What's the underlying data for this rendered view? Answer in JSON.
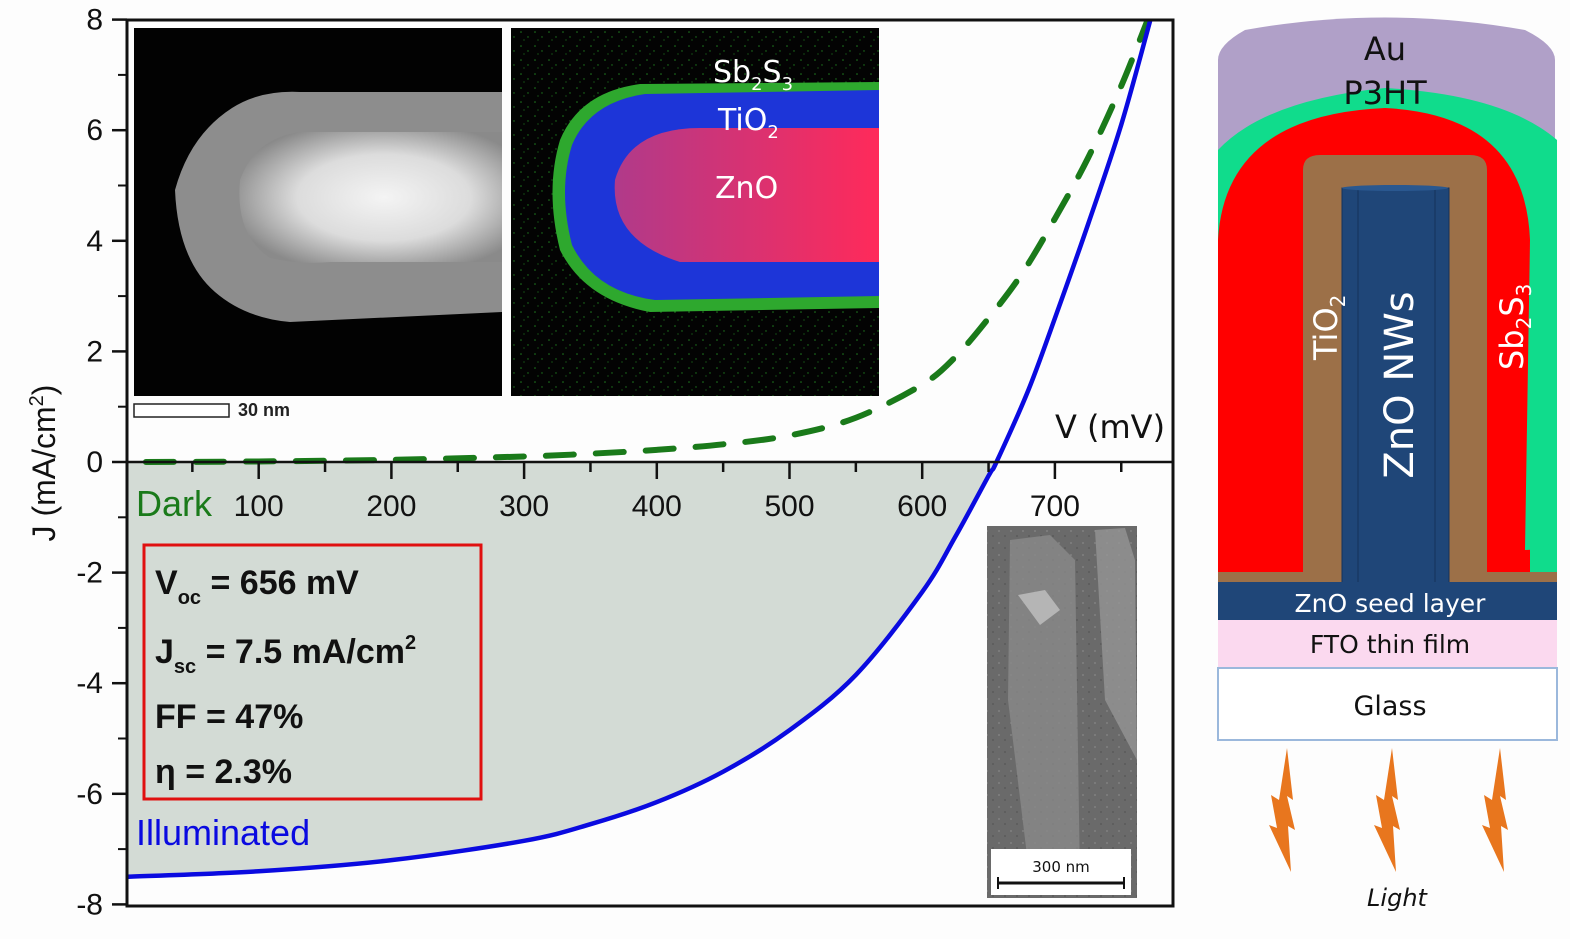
{
  "chart_data": {
    "type": "line",
    "xlabel": "V (mV)",
    "ylabel": "J (mA/cm",
    "ylabel_sup": "2",
    "ylabel_close": ")",
    "xlim": [
      0,
      785
    ],
    "ylim": [
      -8,
      8
    ],
    "x_ticks": [
      100,
      200,
      300,
      400,
      500,
      600,
      700
    ],
    "x_tick_labels": [
      "100",
      "200",
      "300",
      "400",
      "500",
      "600",
      "700"
    ],
    "y_ticks": [
      8,
      6,
      4,
      2,
      0,
      -2,
      -4,
      -6,
      -8
    ],
    "y_tick_labels": [
      "8",
      "6",
      "4",
      "2",
      "0",
      "-2",
      "-4",
      "-6",
      "-8"
    ],
    "series": [
      {
        "name": "Dark",
        "label": "Dark",
        "color": "#1a7a1a",
        "style": "dashed",
        "x": [
          15,
          100,
          200,
          300,
          350,
          400,
          450,
          500,
          550,
          600,
          625,
          650,
          675,
          700,
          725,
          750,
          770
        ],
        "y": [
          0.0,
          0.01,
          0.04,
          0.1,
          0.15,
          0.22,
          0.32,
          0.48,
          0.8,
          1.4,
          1.9,
          2.6,
          3.4,
          4.4,
          5.5,
          6.8,
          8.0
        ]
      },
      {
        "name": "Illuminated",
        "label": "Illuminated",
        "color": "#0a0ae0",
        "style": "solid",
        "x": [
          0,
          100,
          200,
          300,
          350,
          400,
          450,
          500,
          550,
          600,
          625,
          650,
          656,
          680,
          700,
          725,
          750,
          772
        ],
        "y": [
          -7.5,
          -7.4,
          -7.2,
          -6.85,
          -6.55,
          -6.15,
          -5.6,
          -4.85,
          -3.85,
          -2.35,
          -1.35,
          -0.25,
          0.0,
          1.3,
          2.6,
          4.3,
          6.1,
          8.0
        ]
      }
    ]
  },
  "parameters": {
    "voc_main": "V",
    "voc_sub": "oc",
    "voc_value": " = 656 mV",
    "jsc_main": "J",
    "jsc_sub": "sc",
    "jsc_value": " = 7.5 mA/cm",
    "jsc_sup": "2",
    "ff": "FF = 47%",
    "eta": "η = 2.3%"
  },
  "insets": {
    "haadf_scale": "30 nm",
    "eds_labels": {
      "sb2s3_a": "Sb",
      "sb2s3_b": "2",
      "sb2s3_c": "S",
      "sb2s3_d": "3",
      "tio2_a": "TiO",
      "tio2_b": "2",
      "zno": "ZnO"
    },
    "sem_scale": "300 nm"
  },
  "device": {
    "au": "Au",
    "p3ht": "P3HT",
    "tio2_main": "TiO",
    "tio2_sub": "2",
    "zno_nws": "ZnO NWs",
    "sb2s3_a": "Sb",
    "sb2s3_b": "2",
    "sb2s3_c": "S",
    "sb2s3_d": "3",
    "seed": "ZnO seed layer",
    "fto": "FTO thin film",
    "glass": "Glass",
    "light": "Light",
    "colors": {
      "au": "#b0a0c8",
      "p3ht": "#10dc8c",
      "sb2s3": "#ff0000",
      "tio2": "#9c7048",
      "zno": "#1f4678",
      "fto": "#fbd9ef",
      "light": "#e8761e"
    }
  }
}
